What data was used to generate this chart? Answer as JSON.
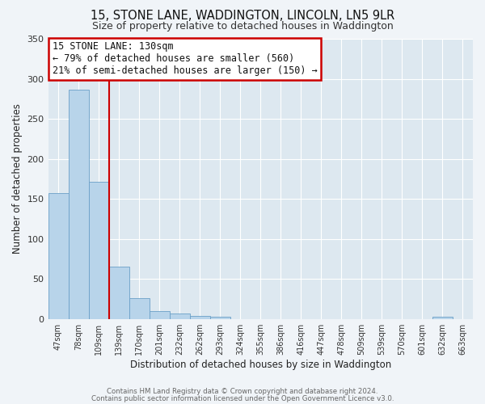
{
  "title": "15, STONE LANE, WADDINGTON, LINCOLN, LN5 9LR",
  "subtitle": "Size of property relative to detached houses in Waddington",
  "xlabel": "Distribution of detached houses by size in Waddington",
  "ylabel": "Number of detached properties",
  "bar_labels": [
    "47sqm",
    "78sqm",
    "109sqm",
    "139sqm",
    "170sqm",
    "201sqm",
    "232sqm",
    "262sqm",
    "293sqm",
    "324sqm",
    "355sqm",
    "386sqm",
    "416sqm",
    "447sqm",
    "478sqm",
    "509sqm",
    "539sqm",
    "570sqm",
    "601sqm",
    "632sqm",
    "663sqm"
  ],
  "bar_values": [
    157,
    286,
    171,
    65,
    26,
    10,
    7,
    4,
    3,
    0,
    0,
    0,
    0,
    0,
    0,
    0,
    0,
    0,
    0,
    3,
    0
  ],
  "bar_color": "#b8d4ea",
  "bar_edge_color": "#6aa0c8",
  "vline_color": "#cc0000",
  "annotation_text": "15 STONE LANE: 130sqm\n← 79% of detached houses are smaller (560)\n21% of semi-detached houses are larger (150) →",
  "annotation_box_color": "#ffffff",
  "annotation_box_edge": "#cc0000",
  "ylim": [
    0,
    350
  ],
  "yticks": [
    0,
    50,
    100,
    150,
    200,
    250,
    300,
    350
  ],
  "bg_color": "#dde8f0",
  "fig_color": "#f0f4f8",
  "grid_color": "#ffffff",
  "footer1": "Contains HM Land Registry data © Crown copyright and database right 2024.",
  "footer2": "Contains public sector information licensed under the Open Government Licence v3.0."
}
